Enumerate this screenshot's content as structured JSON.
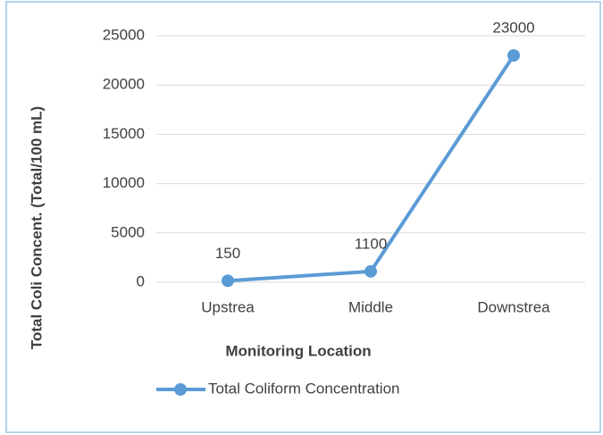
{
  "chart_data": {
    "type": "line",
    "y_axis_label": "Total Coli Concent. (Total/100 mL)",
    "x_axis_label": "Monitoring Location",
    "categories": [
      "Upstrea",
      "Middle",
      "Downstrea"
    ],
    "series": [
      {
        "name": "Total Coliform Concentration",
        "color": "#5b9bd5",
        "values": [
          150,
          1100,
          23000
        ]
      }
    ],
    "ylim": [
      0,
      25000
    ],
    "yticks": [
      0,
      5000,
      10000,
      15000,
      20000,
      25000
    ],
    "grid": true,
    "legend": "bottom"
  }
}
